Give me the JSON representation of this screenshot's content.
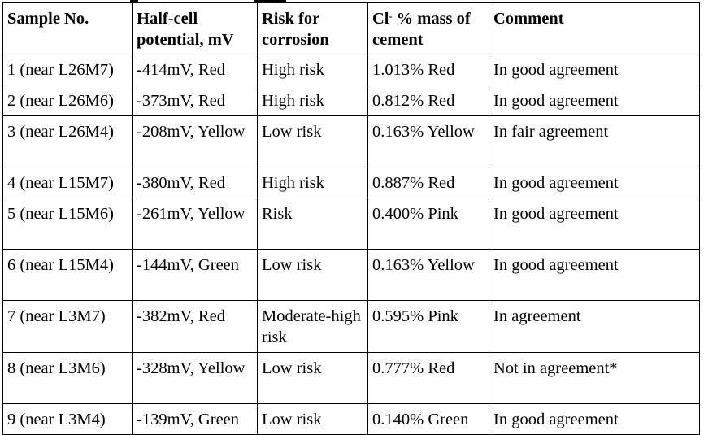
{
  "table": {
    "headers": {
      "sample_no": "Sample No.",
      "half_cell": "Half-cell potential, mV",
      "risk": "Risk for corrosion",
      "chloride_prefix": "Cl",
      "chloride_sup": "-",
      "chloride_suffix": " % mass of cement",
      "comment": "Comment"
    },
    "rows": [
      {
        "sample": "1 (near L26M7)",
        "potential": "-414mV, Red",
        "risk": "High risk",
        "chloride": "1.013% Red",
        "comment": "In good agreement"
      },
      {
        "sample": "2 (near L26M6)",
        "potential": "-373mV, Red",
        "risk": "High risk",
        "chloride": "0.812% Red",
        "comment": "In good agreement"
      },
      {
        "sample": "3 (near L26M4)",
        "potential": "-208mV, Yellow",
        "risk": "Low risk",
        "chloride": "0.163% Yellow",
        "comment": "In fair agreement"
      },
      {
        "sample": "4 (near L15M7)",
        "potential": "-380mV, Red",
        "risk": "High risk",
        "chloride": "0.887% Red",
        "comment": "In good agreement"
      },
      {
        "sample": "5 (near L15M6)",
        "potential": "-261mV, Yellow",
        "risk": "Risk",
        "chloride": "0.400% Pink",
        "comment": "In good agreement"
      },
      {
        "sample": "6 (near L15M4)",
        "potential": "-144mV, Green",
        "risk": "Low risk",
        "chloride": "0.163% Yellow",
        "comment": "In good agreement"
      },
      {
        "sample": "7 (near L3M7)",
        "potential": "-382mV, Red",
        "risk": "Moderate-high risk",
        "chloride": "0.595% Pink",
        "comment": "In agreement"
      },
      {
        "sample": "8 (near L3M6)",
        "potential": "-328mV, Yellow",
        "risk": "Low risk",
        "chloride": "0.777% Red",
        "comment": "Not in agreement*"
      },
      {
        "sample": "9 (near L3M4)",
        "potential": "-139mV, Green",
        "risk": "Low risk",
        "chloride": "0.140% Green",
        "comment": "In good agreement"
      }
    ]
  }
}
